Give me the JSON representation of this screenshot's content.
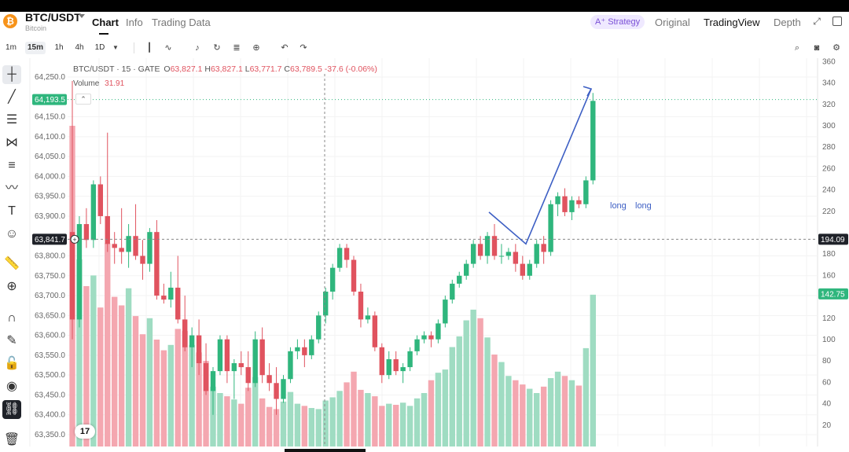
{
  "header": {
    "coin_symbol": "₿",
    "pair": "BTC/USDT",
    "pair_sub": "Bitcoin",
    "tabs": [
      "Chart",
      "Info",
      "Trading Data"
    ],
    "strategy_label": "A⁺ Strategy",
    "view_tabs": [
      "Original",
      "TradingView",
      "Depth"
    ]
  },
  "toolbar": {
    "timeframes": [
      "1m",
      "15m",
      "1h",
      "4h",
      "1D"
    ],
    "active_timeframe": "15m"
  },
  "legend": {
    "symbol": "BTC/USDT · 15 · GATE",
    "o_label": "O",
    "o": "63,827.1",
    "h_label": "H",
    "h": "63,827.1",
    "l_label": "L",
    "l": "63,771.7",
    "c_label": "C",
    "c": "63,789.5",
    "change": "-37.6 (-0.06%)",
    "volume_label": "Volume",
    "volume": "31.91"
  },
  "chart_data": {
    "type": "candlestick",
    "price_ticks": [
      "64,250.0",
      "64,150.0",
      "64,100.0",
      "64,050.0",
      "64,000.0",
      "63,950.0",
      "63,900.0",
      "63,800.0",
      "63,750.0",
      "63,700.0",
      "63,650.0",
      "63,600.0",
      "63,550.0",
      "63,500.0",
      "63,450.0",
      "63,400.0",
      "63,350.0"
    ],
    "volume_ticks": [
      "360",
      "340",
      "320",
      "300",
      "280",
      "260",
      "240",
      "220",
      "180",
      "160",
      "120",
      "100",
      "80",
      "60",
      "40",
      "20"
    ],
    "current_price_tag": "64,193.5",
    "crosshair_price_tag": "63,841.7",
    "crosshair_volume_tag": "194.09",
    "last_volume_tag": "142.75",
    "candles": [
      [
        63860,
        64240,
        63590,
        63640,
        300
      ],
      [
        63640,
        63900,
        63620,
        63880,
        175
      ],
      [
        63880,
        63920,
        63820,
        63840,
        150
      ],
      [
        63840,
        63990,
        63820,
        63980,
        160
      ],
      [
        63980,
        64000,
        63880,
        63900,
        130
      ],
      [
        63900,
        64110,
        63810,
        63830,
        190
      ],
      [
        63830,
        63860,
        63780,
        63820,
        140
      ],
      [
        63820,
        63920,
        63780,
        63810,
        132
      ],
      [
        63810,
        63880,
        63770,
        63850,
        148
      ],
      [
        63850,
        63930,
        63790,
        63800,
        122
      ],
      [
        63800,
        63840,
        63740,
        63780,
        105
      ],
      [
        63780,
        63870,
        63760,
        63860,
        120
      ],
      [
        63860,
        63890,
        63690,
        63700,
        100
      ],
      [
        63700,
        63730,
        63680,
        63690,
        90
      ],
      [
        63690,
        63760,
        63670,
        63720,
        95
      ],
      [
        63720,
        63800,
        63630,
        63640,
        110
      ],
      [
        63640,
        63700,
        63560,
        63570,
        108
      ],
      [
        63570,
        63620,
        63520,
        63600,
        95
      ],
      [
        63600,
        63640,
        63500,
        63530,
        88
      ],
      [
        63530,
        63580,
        63450,
        63460,
        80
      ],
      [
        63460,
        63520,
        63400,
        63510,
        56
      ],
      [
        63510,
        63600,
        63500,
        63590,
        50
      ],
      [
        63590,
        63600,
        63480,
        63510,
        47
      ],
      [
        63510,
        63540,
        63440,
        63530,
        44
      ],
      [
        63530,
        63560,
        63500,
        63520,
        40
      ],
      [
        63520,
        63560,
        63460,
        63480,
        55
      ],
      [
        63480,
        63610,
        63470,
        63590,
        65
      ],
      [
        63590,
        63620,
        63480,
        63500,
        45
      ],
      [
        63500,
        63530,
        63460,
        63480,
        37
      ],
      [
        63480,
        63520,
        63400,
        63440,
        35
      ],
      [
        63440,
        63500,
        63430,
        63490,
        42
      ],
      [
        63490,
        63570,
        63480,
        63560,
        51
      ],
      [
        63560,
        63590,
        63540,
        63570,
        40
      ],
      [
        63570,
        63590,
        63520,
        63550,
        38
      ],
      [
        63550,
        63600,
        63540,
        63590,
        36
      ],
      [
        63590,
        63660,
        63580,
        63650,
        35
      ],
      [
        63650,
        63720,
        63630,
        63710,
        43
      ],
      [
        63710,
        63780,
        63690,
        63770,
        46
      ],
      [
        63770,
        63830,
        63760,
        63820,
        52
      ],
      [
        63820,
        63830,
        63770,
        63790,
        60
      ],
      [
        63790,
        63800,
        63700,
        63710,
        70
      ],
      [
        63710,
        63730,
        63620,
        63640,
        53
      ],
      [
        63640,
        63670,
        63630,
        63650,
        50
      ],
      [
        63650,
        63660,
        63560,
        63570,
        47
      ],
      [
        63570,
        63580,
        63480,
        63500,
        38
      ],
      [
        63500,
        63560,
        63490,
        63540,
        40
      ],
      [
        63540,
        63560,
        63500,
        63510,
        39
      ],
      [
        63510,
        63530,
        63480,
        63520,
        41
      ],
      [
        63520,
        63570,
        63510,
        63560,
        38
      ],
      [
        63560,
        63600,
        63550,
        63590,
        45
      ],
      [
        63590,
        63610,
        63580,
        63600,
        50
      ],
      [
        63600,
        63610,
        63570,
        63590,
        62
      ],
      [
        63590,
        63640,
        63580,
        63630,
        69
      ],
      [
        63630,
        63700,
        63620,
        63690,
        72
      ],
      [
        63690,
        63740,
        63680,
        63730,
        93
      ],
      [
        63730,
        63760,
        63720,
        63750,
        103
      ],
      [
        63750,
        63790,
        63740,
        63780,
        118
      ],
      [
        63780,
        63840,
        63770,
        63830,
        128
      ],
      [
        63830,
        63850,
        63790,
        63800,
        120
      ],
      [
        63800,
        63860,
        63780,
        63850,
        102
      ],
      [
        63850,
        63880,
        63790,
        63800,
        86
      ],
      [
        63800,
        63830,
        63780,
        63800,
        79
      ],
      [
        63800,
        63820,
        63790,
        63810,
        66
      ],
      [
        63810,
        63830,
        63760,
        63780,
        62
      ],
      [
        63780,
        63800,
        63740,
        63750,
        58
      ],
      [
        63750,
        63790,
        63740,
        63780,
        54
      ],
      [
        63780,
        63840,
        63770,
        63830,
        50
      ],
      [
        63830,
        63850,
        63780,
        63810,
        56
      ],
      [
        63810,
        63940,
        63800,
        63930,
        64
      ],
      [
        63930,
        63960,
        63900,
        63950,
        70
      ],
      [
        63950,
        63970,
        63900,
        63910,
        66
      ],
      [
        63910,
        63950,
        63890,
        63940,
        62
      ],
      [
        63940,
        63950,
        63920,
        63930,
        57
      ],
      [
        63930,
        64000,
        63920,
        63990,
        92
      ],
      [
        63990,
        64210,
        63980,
        64190,
        142
      ]
    ],
    "trendline_prices": [
      63910,
      63830,
      64220
    ],
    "annotations": [
      "long",
      "long"
    ]
  }
}
